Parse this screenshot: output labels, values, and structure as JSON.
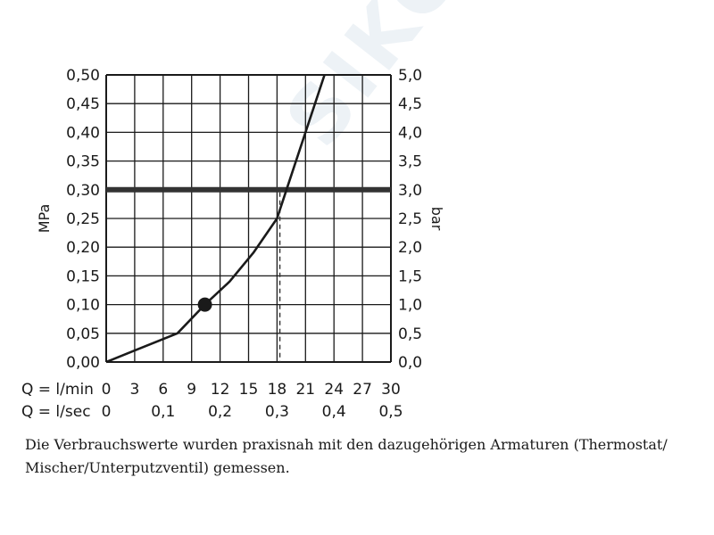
{
  "watermark": "SIKO INO",
  "caption": "Die Verbrauchswerte wurden praxisnah mit den dazugehörigen Armaturen (Thermostat/ Mischer/Unterputzventil) gemessen.",
  "chart_data": {
    "type": "line",
    "ylabel_left": "MPa",
    "ylabel_right": "bar",
    "ylim": [
      0,
      0.5
    ],
    "y_ticks_left": [
      "0,50",
      "0,45",
      "0,40",
      "0,35",
      "0,30",
      "0,25",
      "0,20",
      "0,15",
      "0,10",
      "0,05",
      "0,00"
    ],
    "y_ticks_right": [
      "5,0",
      "4,5",
      "4,0",
      "3,5",
      "3,0",
      "2,5",
      "2,0",
      "1,5",
      "1,0",
      "0,5",
      "0,0"
    ],
    "xlim": [
      0,
      30
    ],
    "x_row1_label": "Q = l/min",
    "x_ticks_lmin": [
      "0",
      "3",
      "6",
      "9",
      "12",
      "15",
      "18",
      "21",
      "24",
      "27",
      "30"
    ],
    "x_row2_label": "Q = l/sec",
    "x_ticks_lsec": [
      "0",
      "0,1",
      "0,2",
      "0,3",
      "0,4",
      "0,5"
    ],
    "grid": true,
    "series": [
      {
        "x": [
          0,
          3,
          7.5,
          10.4,
          13,
          15.5,
          18,
          19,
          21,
          23
        ],
        "y": [
          0,
          0.02,
          0.05,
          0.1,
          0.14,
          0.19,
          0.25,
          0.3,
          0.4,
          0.5
        ]
      }
    ],
    "reference_line_y": 0.3,
    "reference_point_x": 18.3,
    "marker": {
      "x": 10.4,
      "y": 0.1
    },
    "colors": {
      "line": "#1a1a1a",
      "grid": "#1a1a1a",
      "reference": "#333333"
    }
  }
}
